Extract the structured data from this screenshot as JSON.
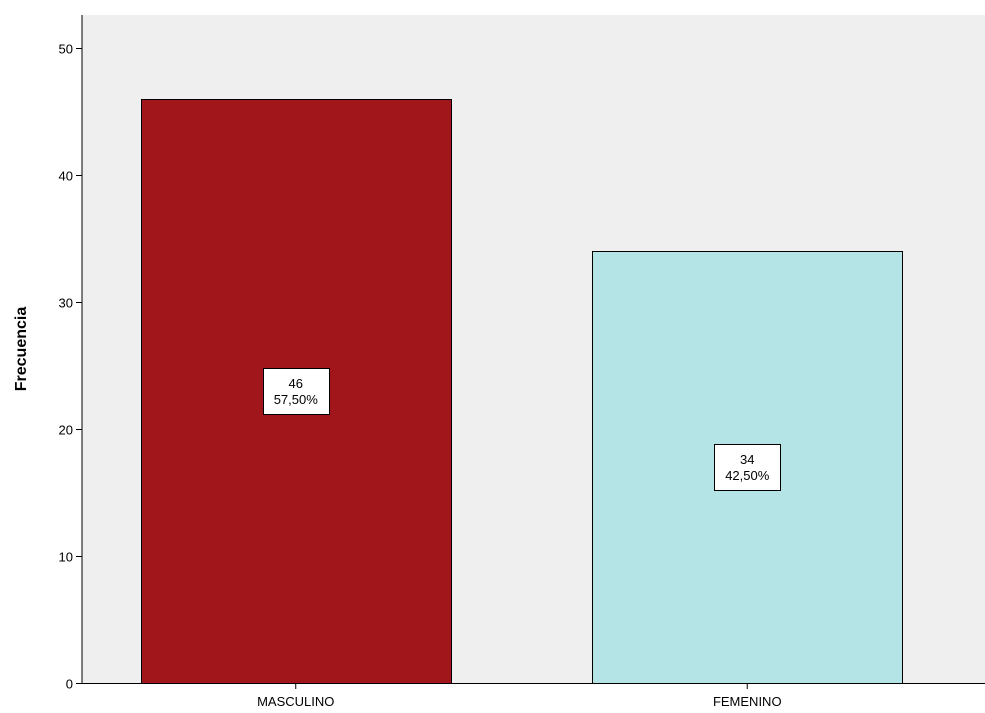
{
  "chart_data": {
    "type": "bar",
    "title": "",
    "xlabel": "",
    "ylabel": "Frecuencia",
    "categories": [
      "MASCULINO",
      "FEMENINO"
    ],
    "values": [
      46,
      34
    ],
    "data_labels": [
      {
        "count": "46",
        "percent": "57,50%"
      },
      {
        "count": "34",
        "percent": "42,50%"
      }
    ],
    "bar_colors": [
      "#a0161a",
      "#b4e4e6"
    ],
    "ylim": [
      0,
      52.6
    ],
    "yticks": [
      0,
      10,
      20,
      30,
      40,
      50
    ],
    "grid": false,
    "legend": "none"
  },
  "colors": {
    "plot_background": "#efefef",
    "axis": "#000000",
    "bar_stroke": "#000000"
  }
}
